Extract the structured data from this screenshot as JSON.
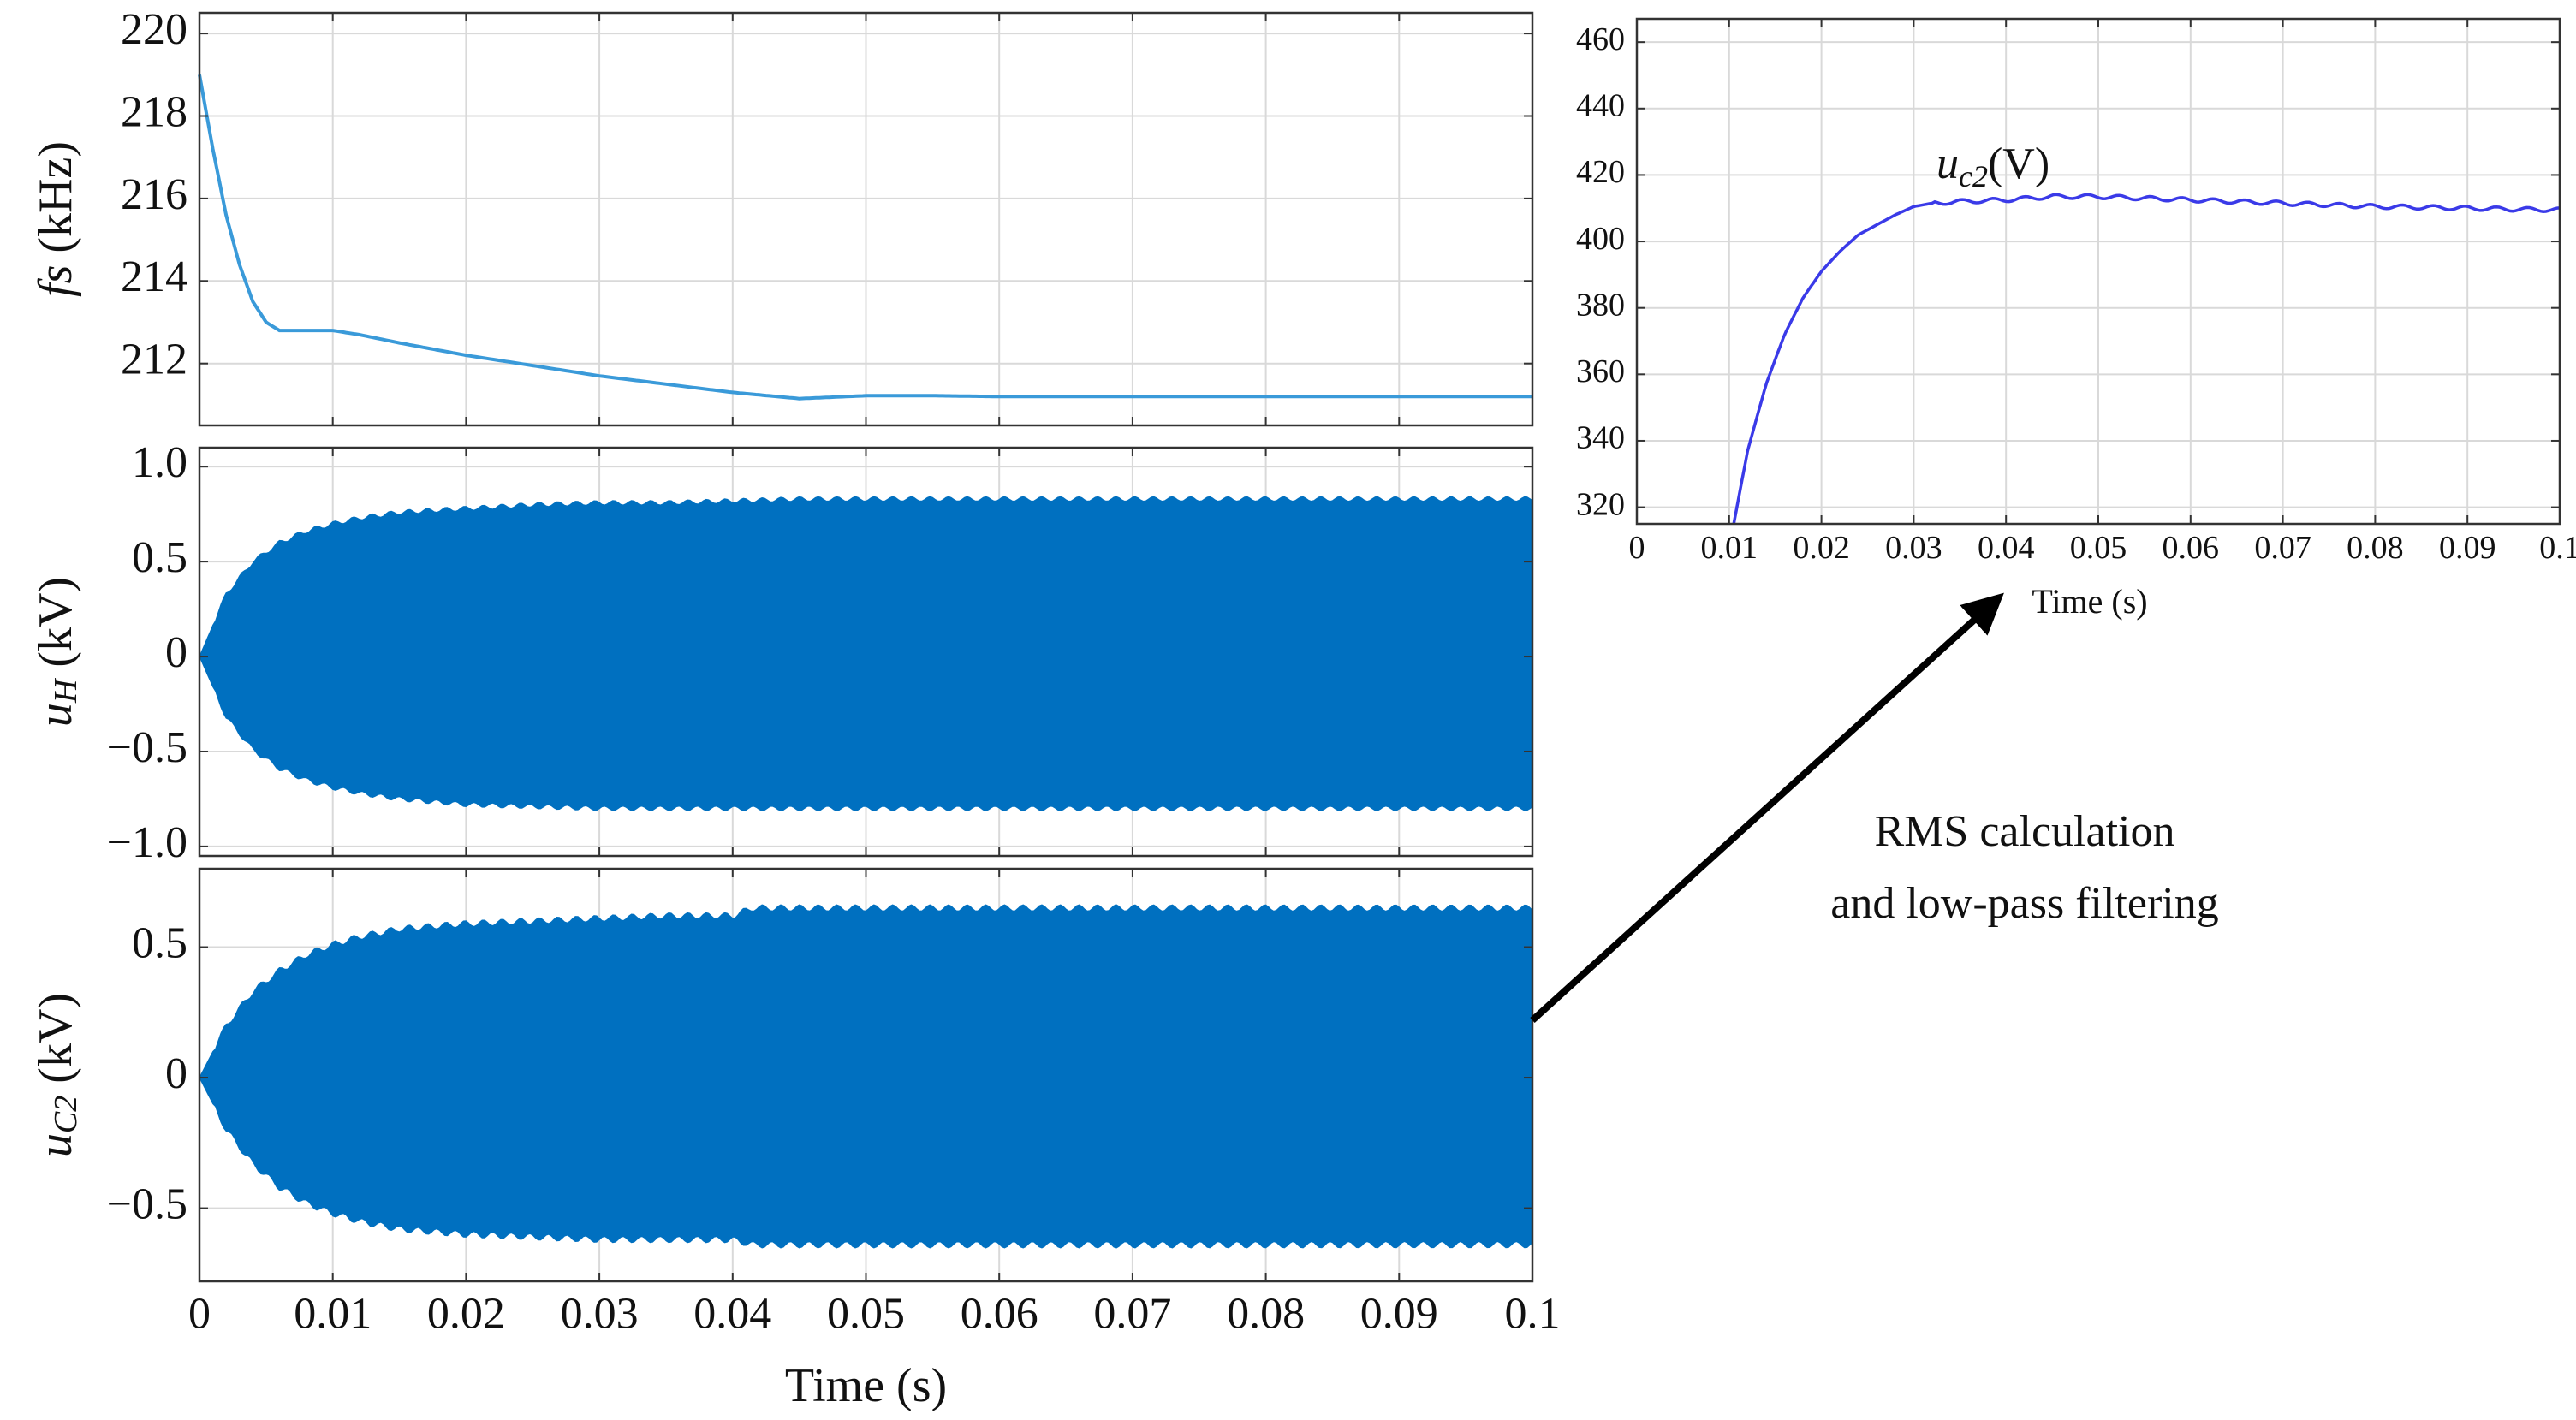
{
  "colors": {
    "waveform": "#0070c0",
    "fs_line": "#3a9ad9",
    "rms_line": "#3a3ae8",
    "grid": "#d9d9d9",
    "axis": "#333333",
    "arrow": "#000000"
  },
  "annotation": {
    "line1": "RMS calculation",
    "line2": "and low-pass filtering"
  },
  "chart_data": [
    {
      "id": "fs",
      "type": "line",
      "ylabel_main": "fs",
      "ylabel_unit": " (kHz)",
      "xlim": [
        0,
        0.1
      ],
      "ylim": [
        210.5,
        220.5
      ],
      "yticks": [
        212,
        214,
        216,
        218,
        220
      ],
      "ytick_labels": [
        "212",
        "214",
        "216",
        "218",
        "220"
      ],
      "xticks": [
        0,
        0.01,
        0.02,
        0.03,
        0.04,
        0.05,
        0.06,
        0.07,
        0.08,
        0.09,
        0.1
      ],
      "grid": true,
      "series": [
        {
          "x": [
            0,
            0.001,
            0.002,
            0.003,
            0.004,
            0.005,
            0.006,
            0.007,
            0.008,
            0.01,
            0.012,
            0.015,
            0.02,
            0.025,
            0.03,
            0.035,
            0.04,
            0.045,
            0.05,
            0.055,
            0.06,
            0.07,
            0.08,
            0.09,
            0.1
          ],
          "y": [
            219.0,
            217.2,
            215.6,
            214.4,
            213.5,
            213.0,
            212.8,
            212.8,
            212.8,
            212.8,
            212.7,
            212.5,
            212.2,
            211.95,
            211.7,
            211.5,
            211.3,
            211.15,
            211.22,
            211.22,
            211.2,
            211.2,
            211.2,
            211.2,
            211.2
          ]
        }
      ]
    },
    {
      "id": "uH",
      "type": "area",
      "ylabel_main": "u",
      "ylabel_sub": "H",
      "ylabel_unit": " (kV)",
      "xlim": [
        0,
        0.1
      ],
      "ylim": [
        -1.05,
        1.1
      ],
      "yticks": [
        1.0,
        0.5,
        0,
        -0.5,
        -1.0
      ],
      "ytick_labels": [
        "1.0",
        "0.5",
        "0",
        "−0.5",
        "−1.0"
      ],
      "xticks": [
        0,
        0.01,
        0.02,
        0.03,
        0.04,
        0.05,
        0.06,
        0.07,
        0.08,
        0.09,
        0.1
      ],
      "grid": true,
      "envelope": {
        "x": [
          0,
          0.002,
          0.004,
          0.006,
          0.008,
          0.01,
          0.012,
          0.015,
          0.02,
          0.025,
          0.03,
          0.035,
          0.04,
          0.045,
          0.05,
          0.06,
          0.07,
          0.08,
          0.09,
          0.1
        ],
        "upper": [
          0,
          0.33,
          0.5,
          0.6,
          0.66,
          0.7,
          0.73,
          0.76,
          0.78,
          0.8,
          0.81,
          0.81,
          0.82,
          0.83,
          0.83,
          0.83,
          0.83,
          0.83,
          0.83,
          0.83
        ],
        "lower": [
          0,
          -0.32,
          -0.49,
          -0.59,
          -0.65,
          -0.69,
          -0.72,
          -0.75,
          -0.78,
          -0.79,
          -0.8,
          -0.8,
          -0.8,
          -0.8,
          -0.8,
          -0.8,
          -0.8,
          -0.8,
          -0.8,
          -0.8
        ]
      }
    },
    {
      "id": "uC2",
      "type": "area",
      "ylabel_main": "u",
      "ylabel_sub": "C2",
      "ylabel_unit": " (kV)",
      "xlim": [
        0,
        0.1
      ],
      "ylim": [
        -0.78,
        0.8
      ],
      "yticks": [
        0.5,
        0,
        -0.5
      ],
      "ytick_labels": [
        "0.5",
        "0",
        "−0.5"
      ],
      "xticks": [
        0,
        0.01,
        0.02,
        0.03,
        0.04,
        0.05,
        0.06,
        0.07,
        0.08,
        0.09,
        0.1
      ],
      "xtick_labels": [
        "0",
        "0.01",
        "0.02",
        "0.03",
        "0.04",
        "0.05",
        "0.06",
        "0.07",
        "0.08",
        "0.09",
        "0.1"
      ],
      "xlabel": "Time (s)",
      "grid": true,
      "envelope": {
        "x": [
          0,
          0.002,
          0.004,
          0.006,
          0.008,
          0.01,
          0.012,
          0.015,
          0.02,
          0.025,
          0.03,
          0.035,
          0.04,
          0.0415,
          0.045,
          0.05,
          0.06,
          0.07,
          0.08,
          0.09,
          0.1
        ],
        "upper": [
          0,
          0.2,
          0.33,
          0.41,
          0.47,
          0.51,
          0.54,
          0.57,
          0.59,
          0.6,
          0.61,
          0.62,
          0.62,
          0.65,
          0.65,
          0.65,
          0.65,
          0.65,
          0.65,
          0.65,
          0.65
        ],
        "lower": [
          0,
          -0.2,
          -0.33,
          -0.42,
          -0.48,
          -0.52,
          -0.55,
          -0.58,
          -0.6,
          -0.61,
          -0.62,
          -0.62,
          -0.62,
          -0.64,
          -0.64,
          -0.64,
          -0.64,
          -0.64,
          -0.64,
          -0.64,
          -0.64
        ]
      }
    },
    {
      "id": "uc2_rms",
      "type": "line",
      "label_main": "u",
      "label_sub": "c2",
      "label_unit": "(V)",
      "xlabel": "Time (s)",
      "xlim": [
        0,
        0.1
      ],
      "ylim": [
        315,
        467
      ],
      "yticks": [
        320,
        340,
        360,
        380,
        400,
        420,
        440,
        460
      ],
      "ytick_labels": [
        "320",
        "340",
        "360",
        "380",
        "400",
        "420",
        "440",
        "460"
      ],
      "xticks": [
        0,
        0.01,
        0.02,
        0.03,
        0.04,
        0.05,
        0.06,
        0.07,
        0.08,
        0.09,
        0.1
      ],
      "xtick_labels": [
        "0",
        "0.01",
        "0.02",
        "0.03",
        "0.04",
        "0.05",
        "0.06",
        "0.07",
        "0.08",
        "0.09",
        "0.1"
      ],
      "grid": true,
      "series": [
        {
          "x": [
            0.0105,
            0.012,
            0.014,
            0.016,
            0.018,
            0.02,
            0.022,
            0.024,
            0.026,
            0.028,
            0.03,
            0.032,
            0.035,
            0.04,
            0.045,
            0.05,
            0.055,
            0.06,
            0.065,
            0.07,
            0.075,
            0.08,
            0.085,
            0.09,
            0.095,
            0.1
          ],
          "y": [
            315,
            337,
            357,
            372,
            383,
            391,
            397,
            402,
            405,
            408,
            410.5,
            411.5,
            412,
            412.5,
            413.5,
            413.5,
            413,
            412.5,
            412,
            411.5,
            411,
            410.5,
            410.3,
            410,
            409.7,
            409.5
          ]
        }
      ]
    }
  ]
}
